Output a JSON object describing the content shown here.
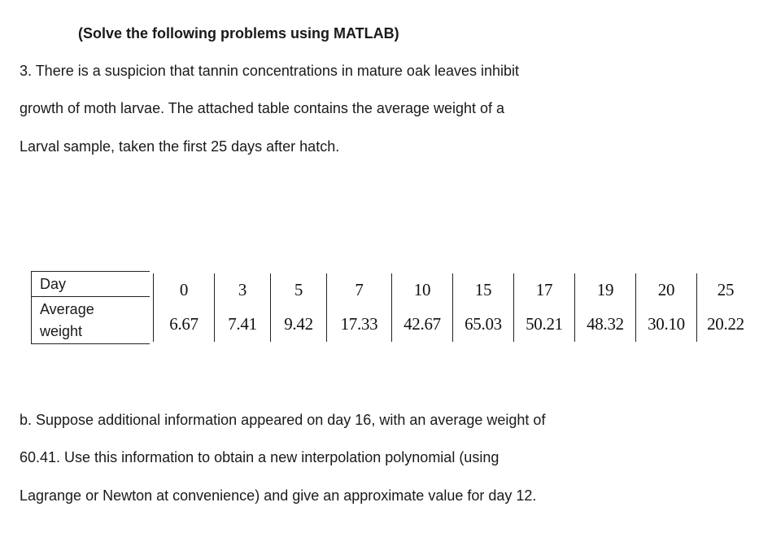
{
  "heading": "(Solve the following problems using MATLAB)",
  "intro_lines": [
    "3. There is a suspicion that tannin concentrations in mature oak leaves inhibit",
    "growth of moth larvae. The attached table contains the average weight of a",
    "Larval sample, taken the first 25 days after hatch."
  ],
  "table": {
    "row_labels": [
      "Day",
      "Average",
      "weight"
    ],
    "days": [
      "0",
      "3",
      "5",
      "7",
      "10",
      "15",
      "17",
      "19",
      "20",
      "25"
    ],
    "weights": [
      "6.67",
      "7.41",
      "9.42",
      "17.33",
      "42.67",
      "65.03",
      "50.21",
      "48.32",
      "30.10",
      "20.22"
    ]
  },
  "part_b_lines": [
    "b. Suppose additional information appeared on day 16, with an average weight of",
    "60.41. Use this information to obtain a new interpolation polynomial (using",
    "Lagrange or Newton at convenience) and give an approximate value for day 12."
  ]
}
